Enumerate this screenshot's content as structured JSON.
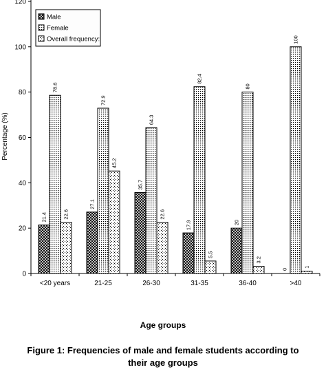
{
  "chart_data": {
    "type": "bar",
    "categories": [
      "<20 years",
      "21-25",
      "26-30",
      "31-35",
      "36-40",
      ">40"
    ],
    "series": [
      {
        "name": "Male",
        "values": [
          21.4,
          27.1,
          35.7,
          17.9,
          20,
          0
        ]
      },
      {
        "name": "Female",
        "values": [
          78.6,
          72.9,
          64.3,
          82.4,
          80,
          100
        ]
      },
      {
        "name": "Overall frequency:",
        "values": [
          22.6,
          45.2,
          22.6,
          5.5,
          3.2,
          1
        ]
      }
    ],
    "value_labels": [
      [
        "21.4",
        "27.1",
        "35.7",
        "17.9",
        "20",
        "0"
      ],
      [
        "78.6",
        "72.9",
        "64.3",
        "82.4",
        "80",
        "100"
      ],
      [
        "22.6",
        "45.2",
        "22.6",
        "5.5",
        "3.2",
        "1"
      ]
    ],
    "ylabel": "Percentage (%)",
    "xlabel": "Age groups",
    "ylim": [
      0,
      120
    ],
    "yticks": [
      0,
      20,
      40,
      60,
      80,
      100,
      120
    ],
    "legend_position": "top-left",
    "grid": false
  },
  "caption": {
    "line1": "Figure 1: Frequencies of male and female students  according to",
    "line2": "their age groups"
  }
}
